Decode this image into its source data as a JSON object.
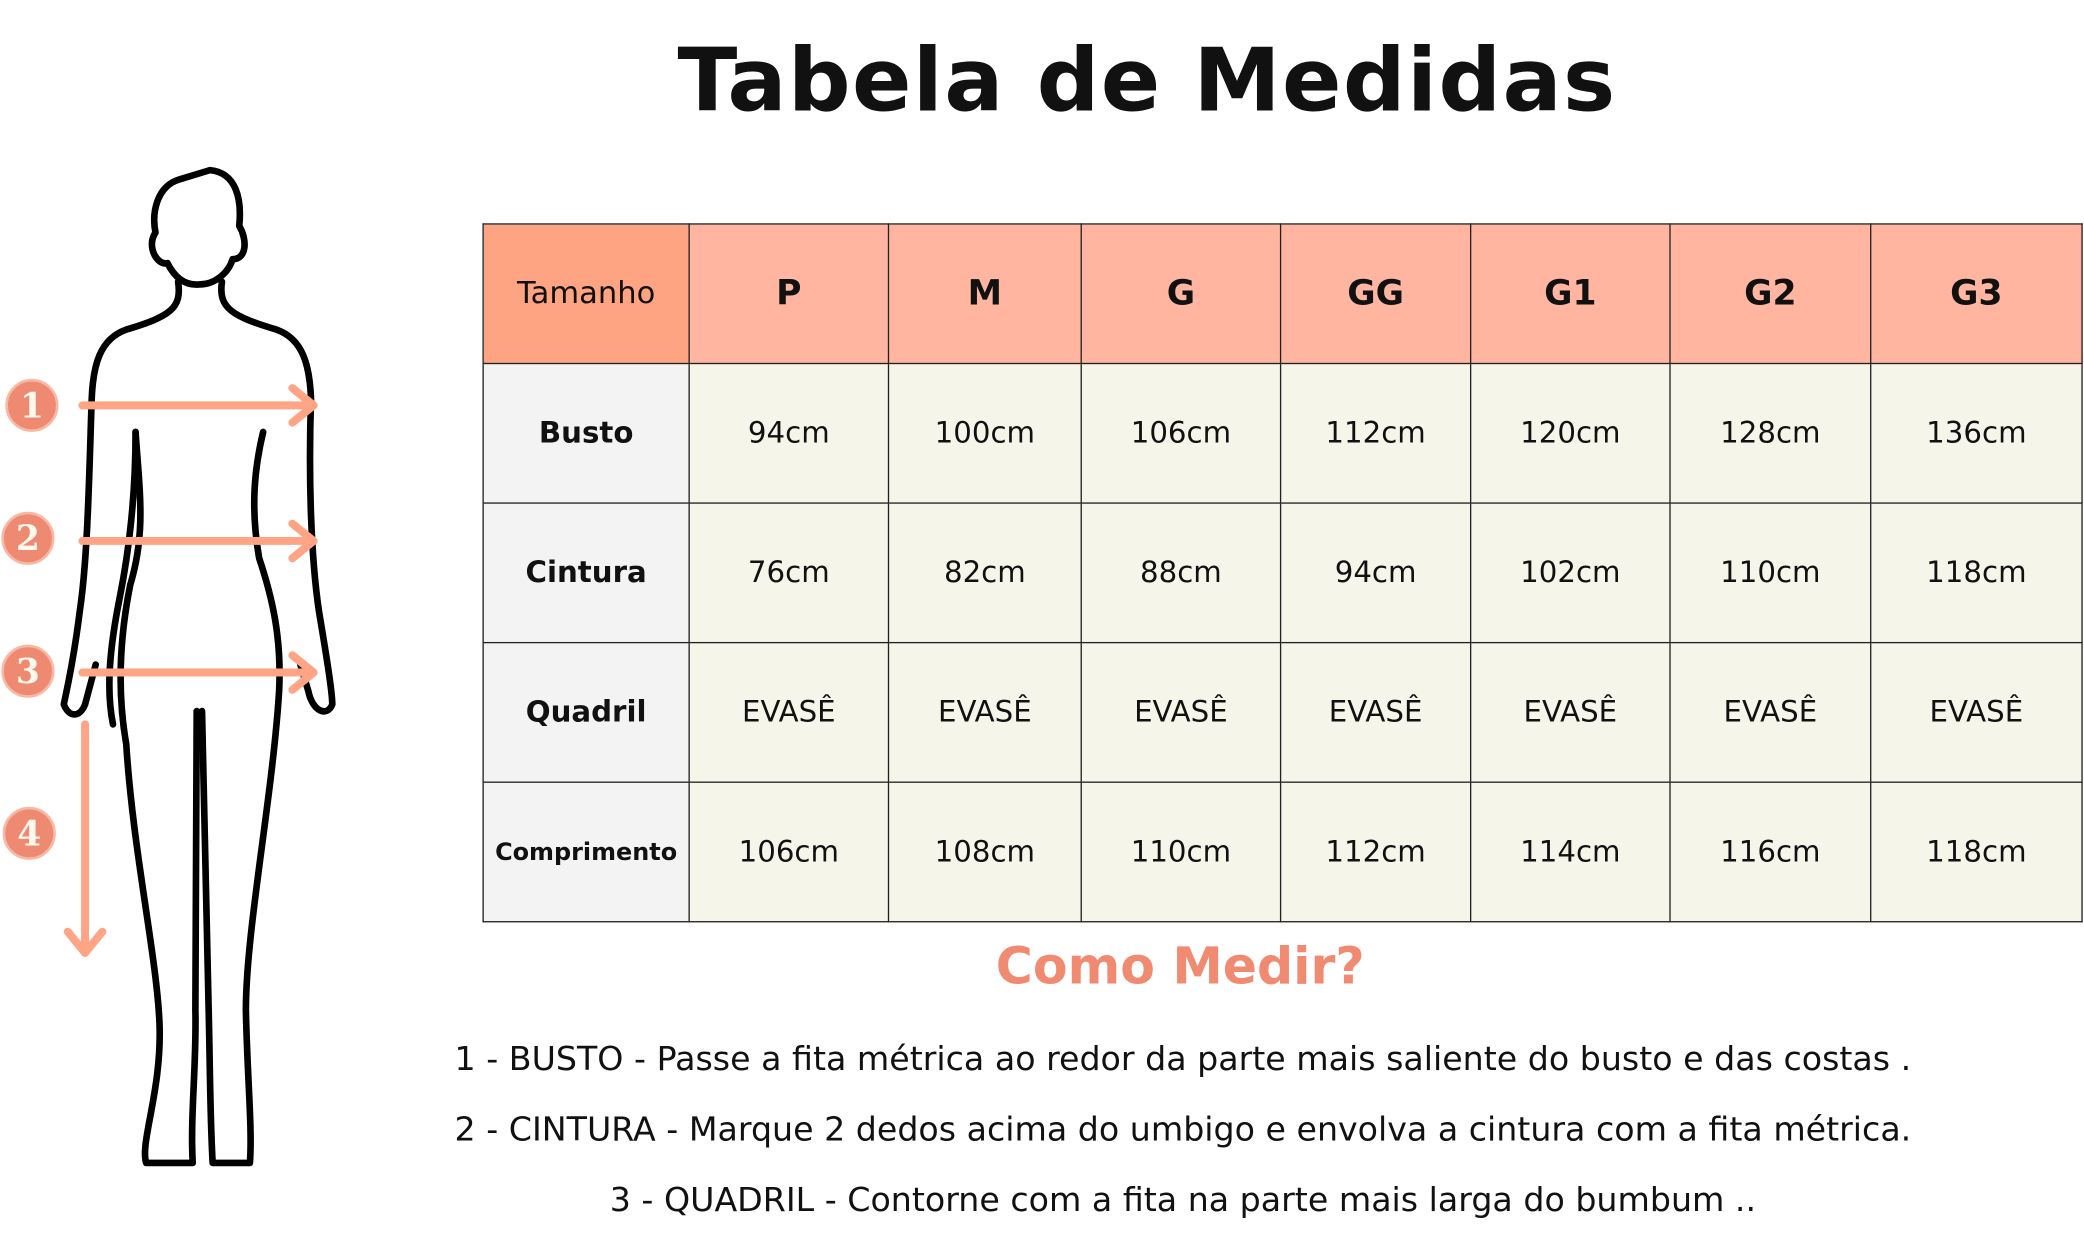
{
  "title": "Tabela de Medidas",
  "table": {
    "header": [
      "Tamanho",
      "P",
      "M",
      "G",
      "GG",
      "G1",
      "G2",
      "G3"
    ],
    "rows": [
      {
        "label": "Busto",
        "values": [
          "94cm",
          "100cm",
          "106cm",
          "112cm",
          "120cm",
          "128cm",
          "136cm"
        ]
      },
      {
        "label": "Cintura",
        "values": [
          "76cm",
          "82cm",
          "88cm",
          "94cm",
          "102cm",
          "110cm",
          "118cm"
        ]
      },
      {
        "label": "Quadril",
        "values": [
          "EVASÊ",
          "EVASÊ",
          "EVASÊ",
          "EVASÊ",
          "EVASÊ",
          "EVASÊ",
          "EVASÊ"
        ]
      },
      {
        "label": "Comprimento",
        "values": [
          "106cm",
          "108cm",
          "110cm",
          "112cm",
          "114cm",
          "116cm",
          "118cm"
        ]
      }
    ]
  },
  "figure": {
    "markers": [
      "1",
      "2",
      "3",
      "4"
    ]
  },
  "how_to": {
    "title": "Como Medir?",
    "lines": [
      "1 - BUSTO - Passe a fita métrica ao redor da parte mais saliente do busto e das costas .",
      "2 - CINTURA - Marque 2 dedos acima do umbigo e envolva a cintura com a fita métrica.",
      "3 - QUADRIL - Contorne com a fita na parte mais larga do bumbum .."
    ]
  },
  "colors": {
    "header_first": "#ffa482",
    "header": "#ffb5a0",
    "label_cell": "#f3f3f3",
    "value_cell": "#f5f5ea",
    "accent": "#f08a70",
    "arrow": "#ffa485"
  }
}
